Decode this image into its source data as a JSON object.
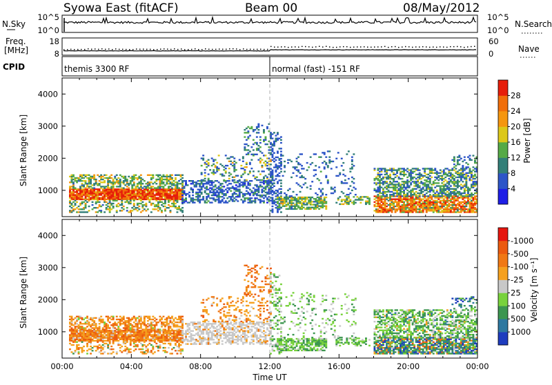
{
  "header": {
    "title": "Syowa East (fitACF)",
    "beam": "Beam 00",
    "date": "08/May/2012"
  },
  "top_panels": {
    "nsky_label": "N.Sky",
    "nsky_ticks": [
      "10^5",
      "10^0"
    ],
    "nsearch_label": "N.Search",
    "nsearch_ticks": [
      "10^5",
      "10^0"
    ],
    "freq_label_1": "Freq.",
    "freq_label_2": "[MHz]",
    "freq_ticks": [
      "18",
      "8"
    ],
    "nave_label": "Nave",
    "nave_ticks": [
      "60",
      "0"
    ],
    "cpid_label": "CPID",
    "cpid_segments": [
      {
        "start": 0,
        "end": 12,
        "label": "themis 3300 RF"
      },
      {
        "start": 12,
        "end": 24,
        "label": "normal (fast) -151 RF"
      }
    ]
  },
  "chart_data": [
    {
      "type": "heatmap",
      "name": "power",
      "ylabel": "Slant Range [km]",
      "xlabel": "Time UT",
      "x_ticks": [
        "00:00",
        "04:00",
        "08:00",
        "12:00",
        "16:00",
        "20:00",
        "00:00"
      ],
      "xlim_hours": [
        0,
        24
      ],
      "ylim_km": [
        180,
        4500
      ],
      "y_ticks": [
        1000,
        2000,
        3000,
        4000
      ],
      "colorbar_label": "Power [dB]",
      "colorbar_ticks": [
        "4",
        "8",
        "12",
        "16",
        "20",
        "24",
        "28"
      ],
      "colorbar_colors": [
        "#1e1ee6",
        "#2d55c8",
        "#327f78",
        "#55aa46",
        "#dcc819",
        "#f5960f",
        "#f06e0a",
        "#e61e0a"
      ],
      "regions": [
        {
          "t": [
            0.4,
            6.9
          ],
          "r": [
            700,
            1050
          ],
          "weights": [
            0,
            0,
            0,
            0,
            0.05,
            0.1,
            0.35,
            0.5
          ],
          "density": 0.92
        },
        {
          "t": [
            0.4,
            6.9
          ],
          "r": [
            1050,
            1500
          ],
          "weights": [
            0,
            0.05,
            0.35,
            0.3,
            0.2,
            0.1,
            0,
            0
          ],
          "density": 0.55
        },
        {
          "t": [
            0.4,
            6.9
          ],
          "r": [
            300,
            700
          ],
          "weights": [
            0,
            0.05,
            0.3,
            0.3,
            0.2,
            0.15,
            0,
            0
          ],
          "density": 0.35
        },
        {
          "t": [
            6.9,
            12.0
          ],
          "r": [
            600,
            1300
          ],
          "weights": [
            0.05,
            0.6,
            0.25,
            0.1,
            0,
            0,
            0,
            0
          ],
          "density": 0.5
        },
        {
          "t": [
            8.0,
            12.0
          ],
          "r": [
            1300,
            2100
          ],
          "weights": [
            0,
            0.3,
            0.3,
            0.2,
            0.15,
            0.05,
            0,
            0
          ],
          "density": 0.22
        },
        {
          "t": [
            10.5,
            12.0
          ],
          "r": [
            2100,
            3050
          ],
          "weights": [
            0,
            0.5,
            0.3,
            0.2,
            0,
            0,
            0,
            0
          ],
          "density": 0.25
        },
        {
          "t": [
            12.0,
            12.6
          ],
          "r": [
            300,
            2800
          ],
          "weights": [
            0,
            0.7,
            0.3,
            0,
            0,
            0,
            0,
            0
          ],
          "density": 0.35
        },
        {
          "t": [
            12.4,
            15.2
          ],
          "r": [
            400,
            800
          ],
          "weights": [
            0,
            0.05,
            0.3,
            0.35,
            0.2,
            0.1,
            0,
            0
          ],
          "density": 0.7
        },
        {
          "t": [
            12.6,
            17.0
          ],
          "r": [
            800,
            2200
          ],
          "weights": [
            0,
            0.6,
            0.35,
            0.05,
            0,
            0,
            0,
            0
          ],
          "density": 0.12
        },
        {
          "t": [
            15.8,
            17.8
          ],
          "r": [
            550,
            800
          ],
          "weights": [
            0,
            0,
            0.3,
            0.3,
            0.3,
            0.1,
            0,
            0
          ],
          "density": 0.45
        },
        {
          "t": [
            18.0,
            24.0
          ],
          "r": [
            300,
            800
          ],
          "weights": [
            0,
            0,
            0.05,
            0.1,
            0.1,
            0.25,
            0.3,
            0.2
          ],
          "density": 0.8
        },
        {
          "t": [
            18.0,
            24.0
          ],
          "r": [
            800,
            1700
          ],
          "weights": [
            0,
            0.25,
            0.35,
            0.25,
            0.15,
            0,
            0,
            0
          ],
          "density": 0.55
        },
        {
          "t": [
            22.5,
            24.0
          ],
          "r": [
            1700,
            2100
          ],
          "weights": [
            0,
            0.3,
            0.4,
            0.3,
            0,
            0,
            0,
            0
          ],
          "density": 0.3
        }
      ]
    },
    {
      "type": "heatmap",
      "name": "velocity",
      "ylabel": "Slant Range [km]",
      "xlabel": "Time UT",
      "x_ticks": [
        "00:00",
        "04:00",
        "08:00",
        "12:00",
        "16:00",
        "20:00",
        "00:00"
      ],
      "xlim_hours": [
        0,
        24
      ],
      "ylim_km": [
        180,
        4500
      ],
      "y_ticks": [
        1000,
        2000,
        3000,
        4000
      ],
      "colorbar_label": "Velocity [m s⁻¹]",
      "colorbar_ticks": [
        "1000",
        "500",
        "100",
        "25",
        "-25",
        "-100",
        "-500",
        "-1000"
      ],
      "colorbar_colors": [
        "#1e3cbe",
        "#2d78a0",
        "#3c9650",
        "#78d23c",
        "#c8c8c8",
        "#f5a01e",
        "#f07814",
        "#eb5a0f",
        "#e6160f"
      ],
      "regions": [
        {
          "t": [
            0.4,
            6.9
          ],
          "r": [
            700,
            1050
          ],
          "weights": [
            0,
            0,
            0,
            0,
            0.05,
            0.4,
            0.35,
            0.2,
            0
          ],
          "density": 0.9
        },
        {
          "t": [
            0.4,
            6.9
          ],
          "r": [
            1050,
            1500
          ],
          "weights": [
            0,
            0,
            0,
            0.05,
            0.05,
            0.4,
            0.35,
            0.15,
            0
          ],
          "density": 0.55
        },
        {
          "t": [
            0.4,
            6.9
          ],
          "r": [
            300,
            700
          ],
          "weights": [
            0,
            0,
            0.05,
            0.05,
            0.1,
            0.4,
            0.3,
            0.1,
            0
          ],
          "density": 0.35
        },
        {
          "t": [
            6.9,
            12.0
          ],
          "r": [
            600,
            1300
          ],
          "weights": [
            0,
            0,
            0,
            0,
            0.85,
            0.1,
            0.05,
            0,
            0
          ],
          "density": 0.5
        },
        {
          "t": [
            8.0,
            12.0
          ],
          "r": [
            1300,
            2100
          ],
          "weights": [
            0,
            0,
            0,
            0,
            0.1,
            0.45,
            0.35,
            0.1,
            0
          ],
          "density": 0.22
        },
        {
          "t": [
            10.5,
            12.0
          ],
          "r": [
            2100,
            3050
          ],
          "weights": [
            0,
            0,
            0,
            0,
            0,
            0.3,
            0.4,
            0.3,
            0
          ],
          "density": 0.25
        },
        {
          "t": [
            12.0,
            12.6
          ],
          "r": [
            300,
            2800
          ],
          "weights": [
            0,
            0,
            0.3,
            0.4,
            0.3,
            0,
            0,
            0,
            0
          ],
          "density": 0.3
        },
        {
          "t": [
            12.4,
            15.2
          ],
          "r": [
            400,
            800
          ],
          "weights": [
            0,
            0,
            0.35,
            0.55,
            0.1,
            0,
            0,
            0,
            0
          ],
          "density": 0.7
        },
        {
          "t": [
            12.6,
            17.0
          ],
          "r": [
            800,
            2200
          ],
          "weights": [
            0,
            0,
            0.3,
            0.4,
            0.3,
            0,
            0,
            0,
            0
          ],
          "density": 0.12
        },
        {
          "t": [
            15.8,
            17.8
          ],
          "r": [
            550,
            800
          ],
          "weights": [
            0,
            0,
            0.3,
            0.5,
            0.2,
            0,
            0,
            0,
            0
          ],
          "density": 0.45
        },
        {
          "t": [
            18.0,
            24.0
          ],
          "r": [
            300,
            800
          ],
          "weights": [
            0.15,
            0.2,
            0.3,
            0.1,
            0.05,
            0.05,
            0.1,
            0.05,
            0
          ],
          "density": 0.8
        },
        {
          "t": [
            18.0,
            24.0
          ],
          "r": [
            800,
            1700
          ],
          "weights": [
            0,
            0.05,
            0.4,
            0.35,
            0.15,
            0.05,
            0,
            0,
            0
          ],
          "density": 0.55
        },
        {
          "t": [
            22.5,
            24.0
          ],
          "r": [
            1700,
            2100
          ],
          "weights": [
            0.3,
            0.3,
            0.3,
            0.1,
            0,
            0,
            0,
            0,
            0
          ],
          "density": 0.3
        }
      ]
    }
  ]
}
